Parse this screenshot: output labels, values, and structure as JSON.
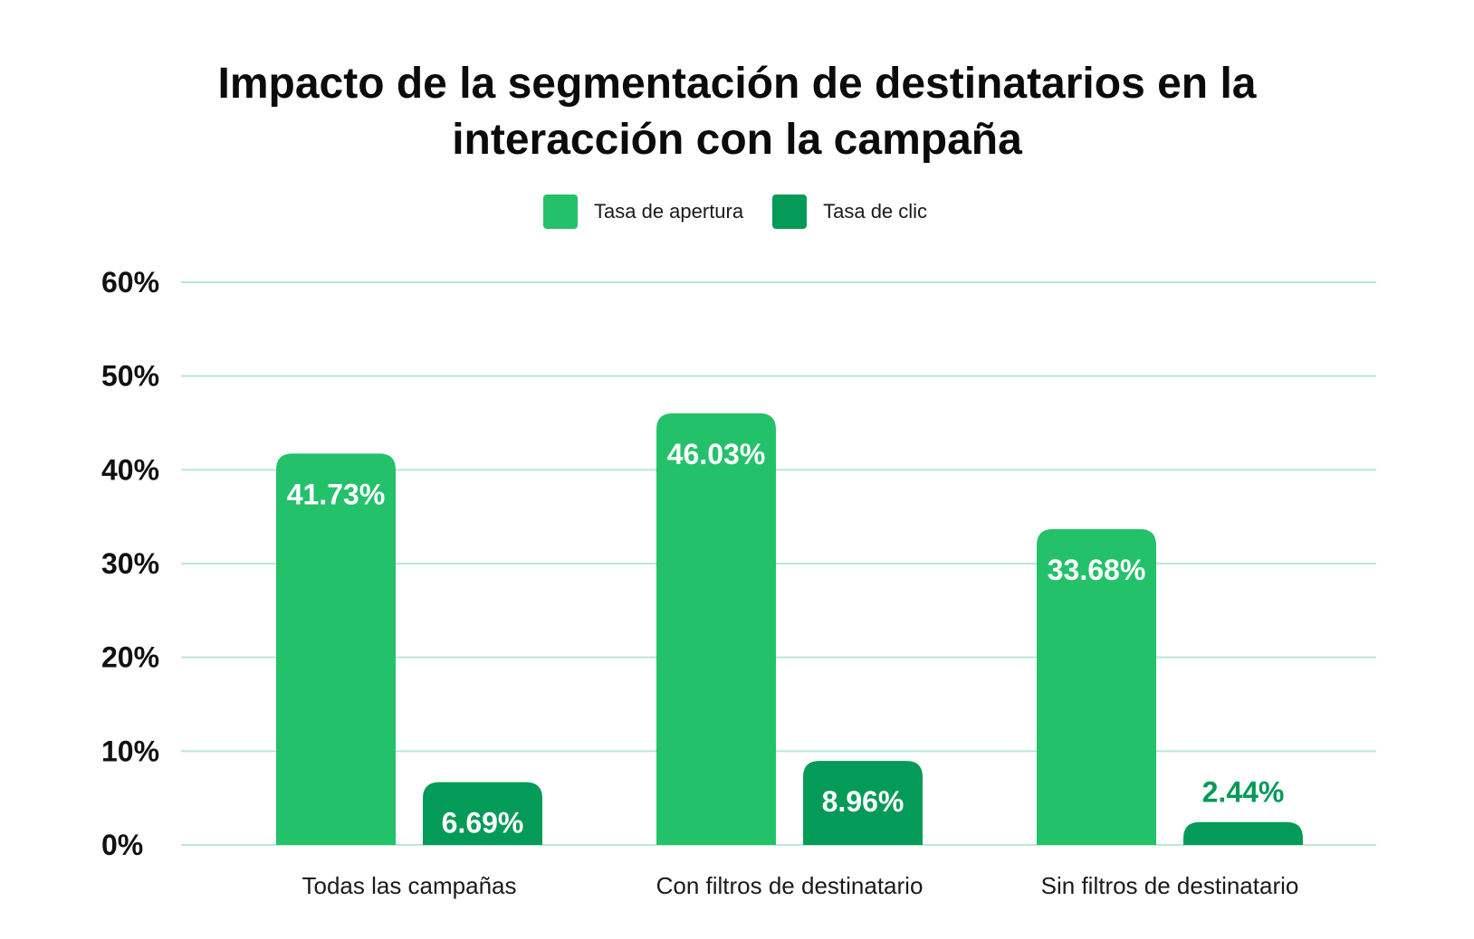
{
  "chart_data": {
    "type": "bar",
    "title_lines": [
      "Impacto de la segmentación de destinatarios en la",
      "interacción con la campaña"
    ],
    "categories": [
      "Todas las campañas",
      "Con filtros de destinatario",
      "Sin filtros de destinatario"
    ],
    "series": [
      {
        "name": "Tasa de apertura",
        "color": "#24c16b",
        "values": [
          41.73,
          46.03,
          33.68
        ],
        "labels": [
          "41.73%",
          "46.03%",
          "33.68%"
        ]
      },
      {
        "name": "Tasa de clic",
        "color": "#049a58",
        "values": [
          6.69,
          8.96,
          2.44
        ],
        "labels": [
          "6.69%",
          "8.96%",
          "2.44%"
        ]
      }
    ],
    "ylim": [
      0,
      60
    ],
    "yticks": [
      0,
      10,
      20,
      30,
      40,
      50,
      60
    ],
    "ytick_labels": [
      "0%",
      "10%",
      "20%",
      "30%",
      "40%",
      "50%",
      "60%"
    ],
    "grid": true,
    "grid_color": "#b9ead0",
    "legend_position": "top-center",
    "xlabel": "",
    "ylabel": ""
  }
}
